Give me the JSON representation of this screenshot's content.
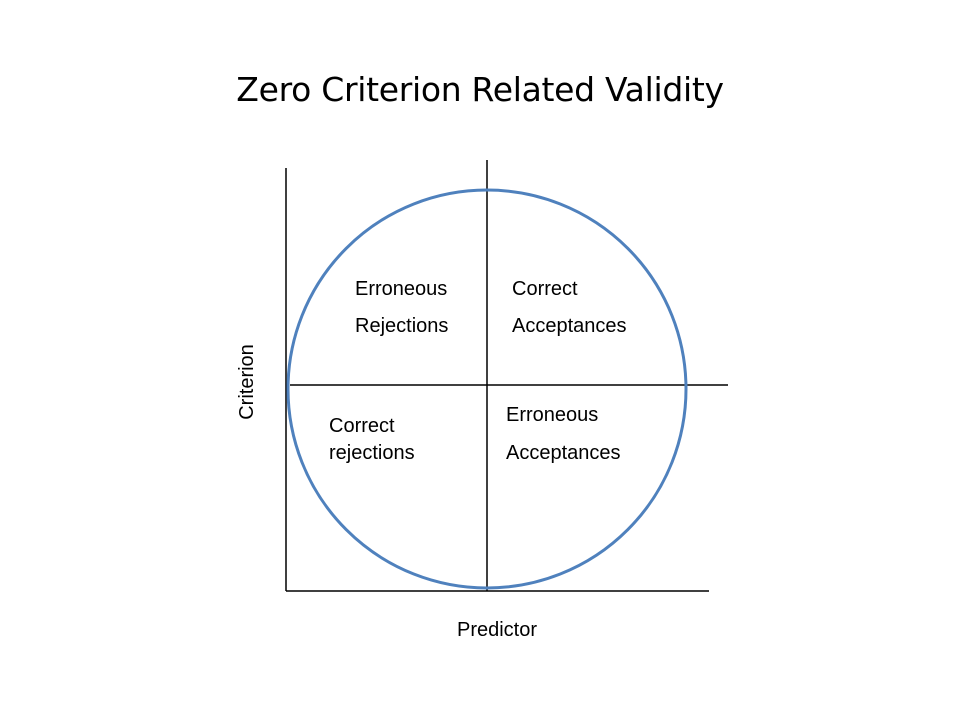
{
  "title": "Zero Criterion Related Validity",
  "axes": {
    "x_label": "Predictor",
    "y_label": "Criterion"
  },
  "quadrants": {
    "top_left": [
      "Erroneous",
      "Rejections"
    ],
    "top_right": [
      "Correct",
      "Acceptances"
    ],
    "bottom_left": [
      "Correct",
      "rejections"
    ],
    "bottom_right": [
      "Erroneous",
      "Acceptances"
    ]
  },
  "colors": {
    "circle": "#4f81bd",
    "lines": "#000000",
    "text": "#000000"
  }
}
